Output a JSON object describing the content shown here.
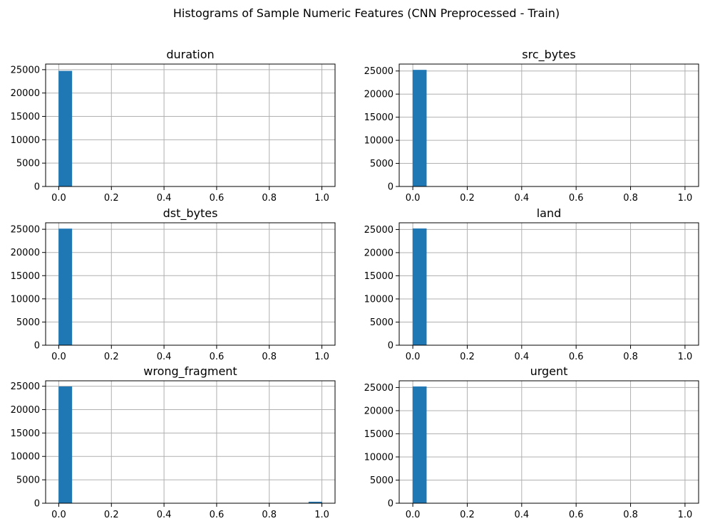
{
  "figure": {
    "suptitle": "Histograms of Sample Numeric Features  (CNN Preprocessed - Train)"
  },
  "colors": {
    "bar": "#1f77b4",
    "grid": "#b0b0b0",
    "axis": "#000000",
    "background": "#ffffff"
  },
  "chart_data": [
    {
      "type": "bar",
      "title": "duration",
      "bins": 20,
      "bin_range": [
        0,
        1
      ],
      "values": [
        24700,
        0,
        0,
        0,
        0,
        0,
        0,
        0,
        0,
        0,
        0,
        0,
        0,
        0,
        0,
        0,
        0,
        0,
        0,
        0
      ],
      "xlim": [
        -0.05,
        1.05
      ],
      "ylim": [
        0,
        26200
      ],
      "xticks": [
        0.0,
        0.2,
        0.4,
        0.6,
        0.8,
        1.0
      ],
      "xtick_labels": [
        "0.0",
        "0.2",
        "0.4",
        "0.6",
        "0.8",
        "1.0"
      ],
      "yticks": [
        0,
        5000,
        10000,
        15000,
        20000,
        25000
      ],
      "ytick_labels": [
        "0",
        "5000",
        "10000",
        "15000",
        "20000",
        "25000"
      ],
      "grid": true
    },
    {
      "type": "bar",
      "title": "src_bytes",
      "bins": 20,
      "bin_range": [
        0,
        1
      ],
      "values": [
        25200,
        0,
        0,
        0,
        0,
        0,
        0,
        0,
        0,
        0,
        0,
        0,
        0,
        0,
        0,
        0,
        0,
        0,
        0,
        0
      ],
      "xlim": [
        -0.05,
        1.05
      ],
      "ylim": [
        0,
        26500
      ],
      "xticks": [
        0.0,
        0.2,
        0.4,
        0.6,
        0.8,
        1.0
      ],
      "xtick_labels": [
        "0.0",
        "0.2",
        "0.4",
        "0.6",
        "0.8",
        "1.0"
      ],
      "yticks": [
        0,
        5000,
        10000,
        15000,
        20000,
        25000
      ],
      "ytick_labels": [
        "0",
        "5000",
        "10000",
        "15000",
        "20000",
        "25000"
      ],
      "grid": true
    },
    {
      "type": "bar",
      "title": "dst_bytes",
      "bins": 20,
      "bin_range": [
        0,
        1
      ],
      "values": [
        25100,
        0,
        0,
        0,
        0,
        0,
        0,
        0,
        0,
        0,
        0,
        0,
        0,
        0,
        0,
        0,
        0,
        0,
        0,
        0
      ],
      "xlim": [
        -0.05,
        1.05
      ],
      "ylim": [
        0,
        26400
      ],
      "xticks": [
        0.0,
        0.2,
        0.4,
        0.6,
        0.8,
        1.0
      ],
      "xtick_labels": [
        "0.0",
        "0.2",
        "0.4",
        "0.6",
        "0.8",
        "1.0"
      ],
      "yticks": [
        0,
        5000,
        10000,
        15000,
        20000,
        25000
      ],
      "ytick_labels": [
        "0",
        "5000",
        "10000",
        "15000",
        "20000",
        "25000"
      ],
      "grid": true
    },
    {
      "type": "bar",
      "title": "land",
      "bins": 20,
      "bin_range": [
        0,
        1
      ],
      "values": [
        25180,
        0,
        0,
        0,
        0,
        0,
        0,
        0,
        0,
        0,
        0,
        0,
        0,
        0,
        0,
        0,
        0,
        0,
        0,
        0
      ],
      "xlim": [
        -0.05,
        1.05
      ],
      "ylim": [
        0,
        26450
      ],
      "xticks": [
        0.0,
        0.2,
        0.4,
        0.6,
        0.8,
        1.0
      ],
      "xtick_labels": [
        "0.0",
        "0.2",
        "0.4",
        "0.6",
        "0.8",
        "1.0"
      ],
      "yticks": [
        0,
        5000,
        10000,
        15000,
        20000,
        25000
      ],
      "ytick_labels": [
        "0",
        "5000",
        "10000",
        "15000",
        "20000",
        "25000"
      ],
      "grid": true
    },
    {
      "type": "bar",
      "title": "wrong_fragment",
      "bins": 20,
      "bin_range": [
        0,
        1
      ],
      "values": [
        24900,
        0,
        0,
        0,
        0,
        0,
        0,
        0,
        0,
        0,
        0,
        0,
        0,
        0,
        0,
        0,
        0,
        0,
        0,
        280
      ],
      "xlim": [
        -0.05,
        1.05
      ],
      "ylim": [
        0,
        26150
      ],
      "xticks": [
        0.0,
        0.2,
        0.4,
        0.6,
        0.8,
        1.0
      ],
      "xtick_labels": [
        "0.0",
        "0.2",
        "0.4",
        "0.6",
        "0.8",
        "1.0"
      ],
      "yticks": [
        0,
        5000,
        10000,
        15000,
        20000,
        25000
      ],
      "ytick_labels": [
        "0",
        "5000",
        "10000",
        "15000",
        "20000",
        "25000"
      ],
      "grid": true
    },
    {
      "type": "bar",
      "title": "urgent",
      "bins": 20,
      "bin_range": [
        0,
        1
      ],
      "values": [
        25190,
        0,
        0,
        0,
        0,
        0,
        0,
        0,
        0,
        0,
        0,
        0,
        0,
        0,
        0,
        0,
        0,
        0,
        0,
        0
      ],
      "xlim": [
        -0.05,
        1.05
      ],
      "ylim": [
        0,
        26450
      ],
      "xticks": [
        0.0,
        0.2,
        0.4,
        0.6,
        0.8,
        1.0
      ],
      "xtick_labels": [
        "0.0",
        "0.2",
        "0.4",
        "0.6",
        "0.8",
        "1.0"
      ],
      "yticks": [
        0,
        5000,
        10000,
        15000,
        20000,
        25000
      ],
      "ytick_labels": [
        "0",
        "5000",
        "10000",
        "15000",
        "20000",
        "25000"
      ],
      "grid": true
    }
  ]
}
